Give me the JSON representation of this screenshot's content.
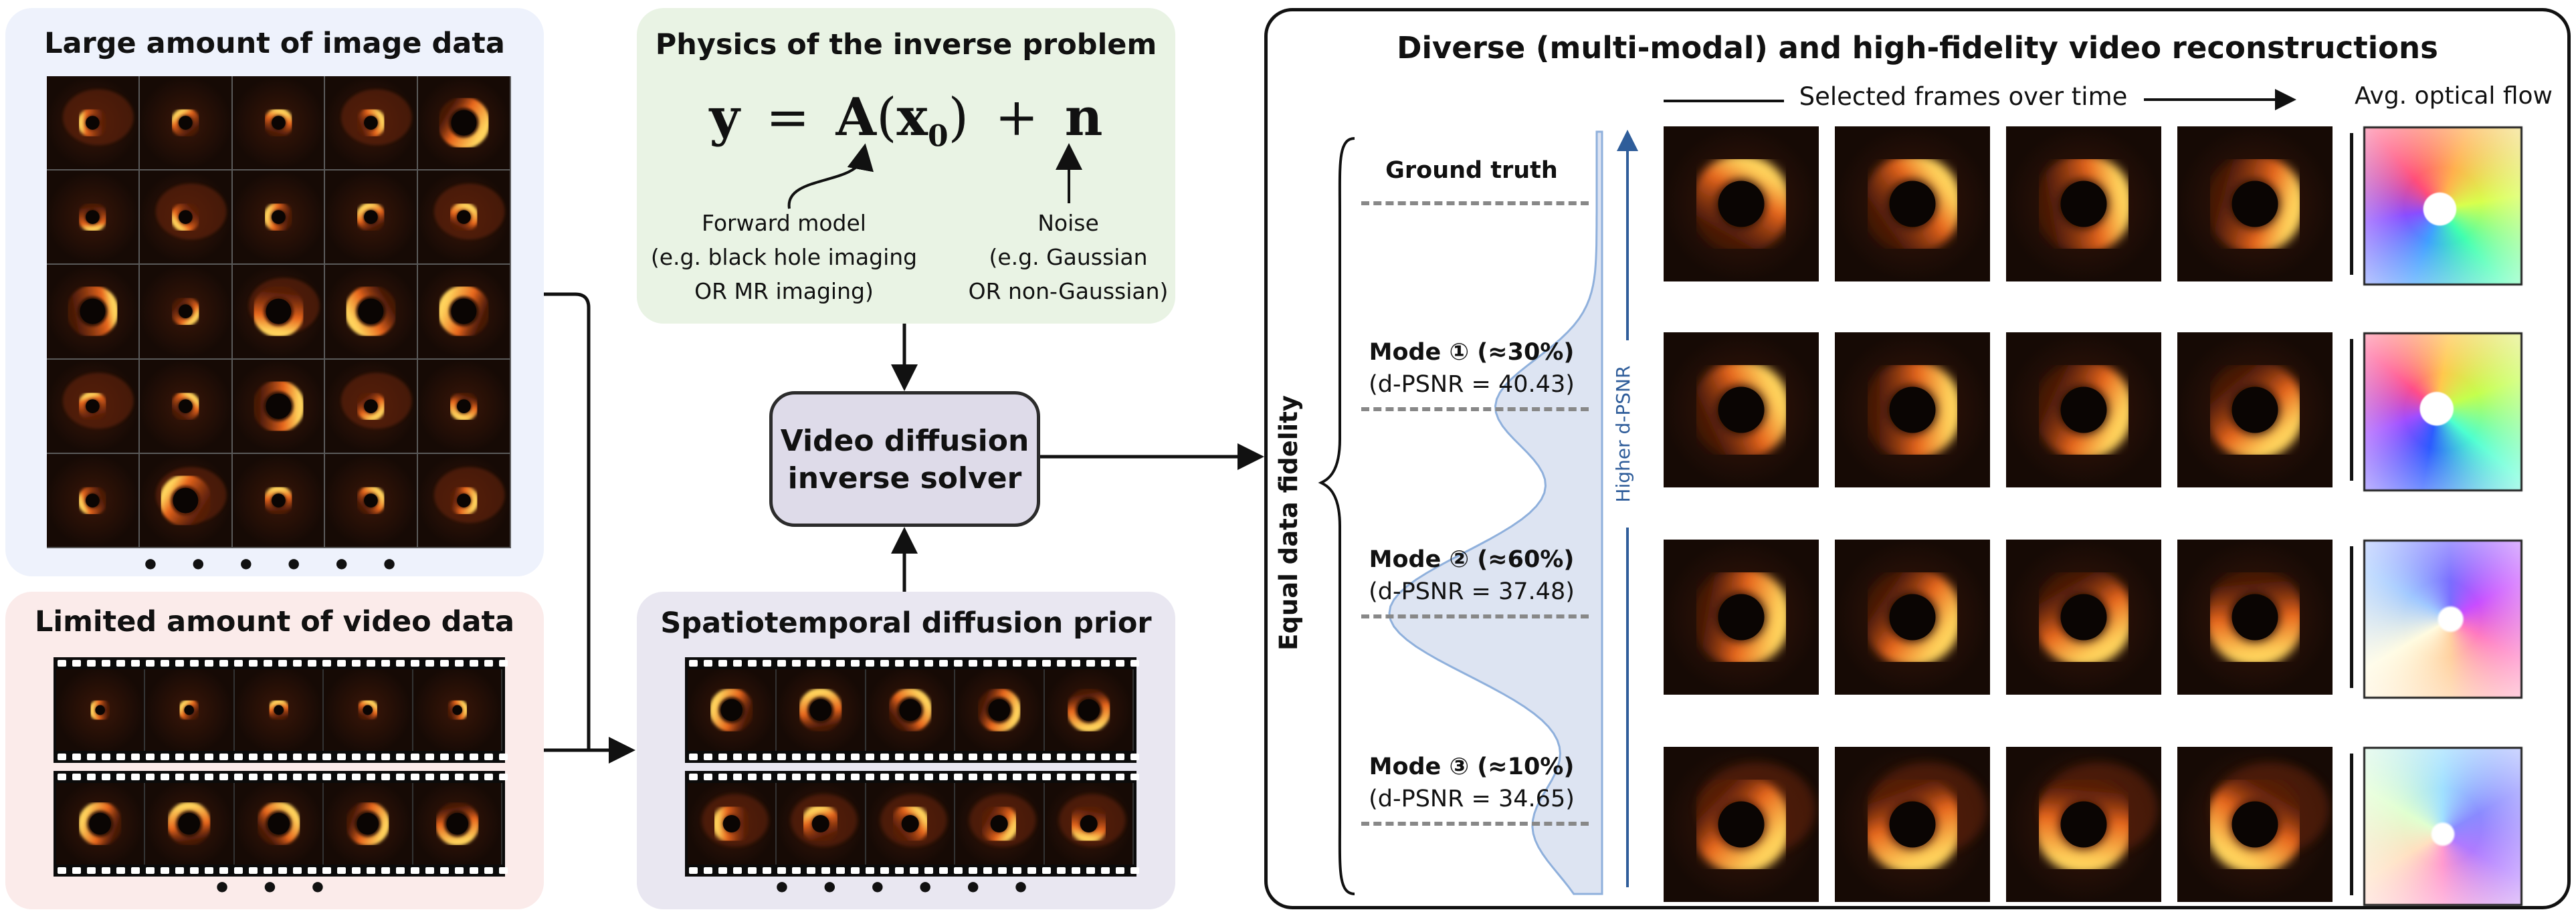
{
  "image_panel": {
    "title": "Large amount of image data",
    "dots": "• • • • • •",
    "bg": "#eef2fc"
  },
  "video_panel": {
    "title": "Limited amount of video data",
    "dots": "• • •",
    "bg": "#fbebea"
  },
  "physics_panel": {
    "title": "Physics of the inverse problem",
    "equation": {
      "y": "y",
      "eq": "=",
      "A": "A",
      "x": "x",
      "sub": "0",
      "plus": "+",
      "n": "n",
      "lparen": "(",
      "rparen": ")"
    },
    "forward_model": [
      "Forward model",
      "(e.g. black hole imaging",
      "OR MR imaging)"
    ],
    "noise": [
      "Noise",
      "(e.g. Gaussian",
      "OR non-Gaussian)"
    ],
    "bg": "#e9f3e4"
  },
  "solver": {
    "line1": "Video diffusion",
    "line2": "inverse solver",
    "bg": "#dedbe9"
  },
  "prior_panel": {
    "title": "Spatiotemporal diffusion prior",
    "dots": "• • • • • •",
    "bg": "#e9e7f1"
  },
  "recon_panel": {
    "title": "Diverse (multi-modal) and high-fidelity video reconstructions",
    "frames_header": "Selected frames over time",
    "flow_header": "Avg. optical flow",
    "y_axis_label": "Equal data fidelity",
    "arrow_label": "Higher d-PSNR",
    "rows": [
      {
        "name": "Ground truth",
        "sub": ""
      },
      {
        "name": "Mode ① (≈30%)",
        "sub": "(d-PSNR = 40.43)"
      },
      {
        "name": "Mode ② (≈60%)",
        "sub": "(d-PSNR = 37.48)"
      },
      {
        "name": "Mode ③ (≈10%)",
        "sub": "(d-PSNR = 34.65)"
      }
    ]
  },
  "colors": {
    "accretion": "#e8661c",
    "accretion_hot": "#ffd35c",
    "density_fill": "#dde4f2",
    "density_line": "#8fb0dc",
    "arrow_blue": "#2f5d9a"
  }
}
